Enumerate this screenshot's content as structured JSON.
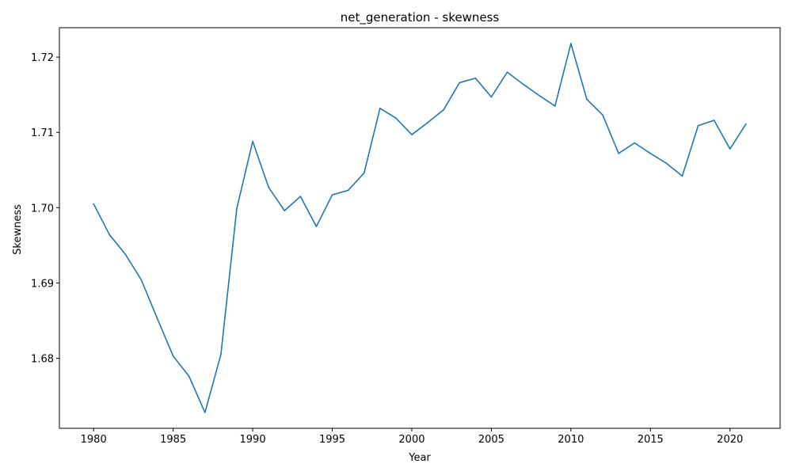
{
  "chart_data": {
    "type": "line",
    "title": "net_generation - skewness",
    "xlabel": "Year",
    "ylabel": "Skewness",
    "xlim": [
      1977.85,
      2023.15
    ],
    "ylim": [
      1.6707,
      1.7239
    ],
    "xticks": [
      1980,
      1985,
      1990,
      1995,
      2000,
      2005,
      2010,
      2015,
      2020
    ],
    "yticks": [
      1.68,
      1.69,
      1.7,
      1.71,
      1.72
    ],
    "ytick_labels": [
      "1.68",
      "1.69",
      "1.70",
      "1.71",
      "1.72"
    ],
    "grid": false,
    "legend": "none",
    "series": [
      {
        "color": "#1f77b4",
        "x": [
          1980,
          1981,
          1982,
          1983,
          1984,
          1985,
          1986,
          1987,
          1988,
          1989,
          1990,
          1991,
          1992,
          1993,
          1994,
          1995,
          1996,
          1997,
          1998,
          1999,
          2000,
          2001,
          2002,
          2003,
          2004,
          2005,
          2006,
          2007,
          2008,
          2009,
          2010,
          2011,
          2012,
          2013,
          2014,
          2015,
          2016,
          2017,
          2018,
          2019,
          2020,
          2021
        ],
        "y": [
          1.7005,
          1.6964,
          1.6938,
          1.6904,
          1.6853,
          1.6803,
          1.6776,
          1.6728,
          1.6805,
          1.6999,
          1.7088,
          1.7027,
          1.6996,
          1.7015,
          1.6975,
          1.7017,
          1.7023,
          1.7046,
          1.7132,
          1.7119,
          1.7097,
          1.7113,
          1.713,
          1.7166,
          1.7172,
          1.7147,
          1.718,
          1.7164,
          1.7149,
          1.7135,
          1.7218,
          1.7144,
          1.7123,
          1.7072,
          1.7086,
          1.7072,
          1.7059,
          1.7042,
          1.7109,
          1.7116,
          1.7078,
          1.7111
        ]
      }
    ]
  }
}
